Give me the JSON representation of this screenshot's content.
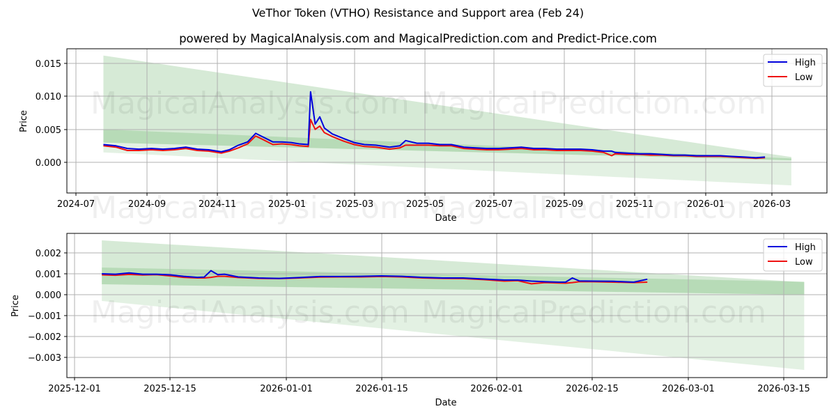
{
  "header": {
    "title": "VeThor Token (VTHO) Resistance and Support area (Feb 24)",
    "subtitle": "powered by MagicalAnalysis.com and MagicalPrediction.com and Predict-Price.com"
  },
  "watermarks": [
    "MagicalAnalysis.com",
    "MagicalPrediction.com"
  ],
  "colors": {
    "high": "#0000dd",
    "low": "#ee1111",
    "band": "#7fbf7f",
    "grid": "#b0b0b0"
  },
  "legend": {
    "high_label": "High",
    "low_label": "Low"
  },
  "chart_data": [
    {
      "type": "line",
      "title": "VeThor Token (VTHO) Resistance and Support area (Feb 24) - full history",
      "xlabel": "Date",
      "ylabel": "Price",
      "ylim": [
        -0.0047,
        0.0169
      ],
      "xticks": [
        "2024-07",
        "2024-09",
        "2024-11",
        "2025-01",
        "2025-03",
        "2025-05",
        "2025-07",
        "2025-09",
        "2025-11",
        "2026-01",
        "2026-03"
      ],
      "yticks": [
        "0.000",
        "0.005",
        "0.010",
        "0.015"
      ],
      "grid": true,
      "legend_position": "upper right",
      "x": [
        "2024-07-25",
        "2024-08-05",
        "2024-08-15",
        "2024-08-25",
        "2024-09-05",
        "2024-09-15",
        "2024-09-25",
        "2024-10-05",
        "2024-10-15",
        "2024-10-25",
        "2024-11-05",
        "2024-11-12",
        "2024-11-20",
        "2024-11-28",
        "2024-12-05",
        "2024-12-12",
        "2024-12-20",
        "2024-12-28",
        "2025-01-05",
        "2025-01-12",
        "2025-01-20",
        "2025-01-22",
        "2025-01-26",
        "2025-01-30",
        "2025-02-03",
        "2025-02-10",
        "2025-02-20",
        "2025-03-01",
        "2025-03-10",
        "2025-03-20",
        "2025-04-01",
        "2025-04-10",
        "2025-04-15",
        "2025-04-25",
        "2025-05-05",
        "2025-05-15",
        "2025-05-25",
        "2025-06-05",
        "2025-06-15",
        "2025-06-25",
        "2025-07-05",
        "2025-07-15",
        "2025-07-25",
        "2025-08-05",
        "2025-08-15",
        "2025-08-25",
        "2025-09-05",
        "2025-09-15",
        "2025-09-25",
        "2025-10-05",
        "2025-10-12",
        "2025-10-15",
        "2025-10-25",
        "2025-11-05",
        "2025-11-15",
        "2025-11-25",
        "2025-12-05",
        "2025-12-15",
        "2025-12-25",
        "2026-01-05",
        "2026-01-15",
        "2026-01-25",
        "2026-02-05",
        "2026-02-15",
        "2026-02-23"
      ],
      "series": [
        {
          "name": "High",
          "values": [
            0.0027,
            0.0025,
            0.0021,
            0.002,
            0.0021,
            0.002,
            0.0021,
            0.0023,
            0.002,
            0.0019,
            0.0016,
            0.0019,
            0.0026,
            0.0031,
            0.0044,
            0.0038,
            0.0031,
            0.0031,
            0.003,
            0.0028,
            0.0027,
            0.0107,
            0.0058,
            0.0069,
            0.0052,
            0.0043,
            0.0036,
            0.003,
            0.0027,
            0.0026,
            0.0023,
            0.0025,
            0.0033,
            0.0029,
            0.0029,
            0.0027,
            0.0027,
            0.0023,
            0.0022,
            0.0021,
            0.0021,
            0.0022,
            0.0023,
            0.0021,
            0.0021,
            0.002,
            0.002,
            0.002,
            0.0019,
            0.0017,
            0.0017,
            0.0015,
            0.0014,
            0.0013,
            0.0013,
            0.0012,
            0.0011,
            0.0011,
            0.001,
            0.001,
            0.001,
            0.0009,
            0.0008,
            0.0007,
            0.0008
          ]
        },
        {
          "name": "Low",
          "values": [
            0.0025,
            0.0023,
            0.0018,
            0.0018,
            0.0019,
            0.0018,
            0.0019,
            0.0021,
            0.0018,
            0.0017,
            0.0014,
            0.0017,
            0.0022,
            0.0028,
            0.004,
            0.0034,
            0.0027,
            0.0028,
            0.0027,
            0.0025,
            0.0024,
            0.0065,
            0.005,
            0.0055,
            0.0045,
            0.0039,
            0.0032,
            0.0027,
            0.0024,
            0.0023,
            0.002,
            0.0022,
            0.0026,
            0.0026,
            0.0026,
            0.0025,
            0.0025,
            0.0021,
            0.002,
            0.0019,
            0.0019,
            0.002,
            0.0021,
            0.0019,
            0.0019,
            0.0018,
            0.0018,
            0.0018,
            0.0017,
            0.0015,
            0.001,
            0.0013,
            0.0012,
            0.0012,
            0.0011,
            0.0011,
            0.001,
            0.001,
            0.0009,
            0.0009,
            0.0009,
            0.0008,
            0.0007,
            0.0006,
            0.0007
          ]
        }
      ],
      "bands": [
        {
          "name": "outer-upper",
          "start": [
            "2024-07-25",
            0.0162
          ],
          "end": [
            "2026-03-18",
            0.0008
          ]
        },
        {
          "name": "outer-lower",
          "start": [
            "2024-07-25",
            0.0015
          ],
          "end": [
            "2026-03-18",
            -0.0035
          ]
        },
        {
          "name": "inner-upper",
          "start": [
            "2024-07-25",
            0.005
          ],
          "end": [
            "2026-03-18",
            0.0006
          ]
        },
        {
          "name": "inner-lower",
          "start": [
            "2024-07-25",
            0.003
          ],
          "end": [
            "2026-03-18",
            0.0003
          ]
        }
      ]
    },
    {
      "type": "line",
      "title": "VeThor Token (VTHO) - recent zoom",
      "xlabel": "Date",
      "ylabel": "Price",
      "ylim": [
        -0.0039,
        0.0029
      ],
      "xticks": [
        "2025-12-01",
        "2025-12-15",
        "2026-01-01",
        "2026-01-15",
        "2026-02-01",
        "2026-02-15",
        "2026-03-01",
        "2026-03-15"
      ],
      "yticks": [
        "-0.003",
        "-0.002",
        "-0.001",
        "0.000",
        "0.001",
        "0.002"
      ],
      "grid": true,
      "legend_position": "upper right",
      "x": [
        "2025-12-05",
        "2025-12-07",
        "2025-12-09",
        "2025-12-11",
        "2025-12-13",
        "2025-12-15",
        "2025-12-17",
        "2025-12-19",
        "2025-12-20",
        "2025-12-21",
        "2025-12-22",
        "2025-12-23",
        "2025-12-25",
        "2025-12-28",
        "2025-12-31",
        "2026-01-03",
        "2026-01-06",
        "2026-01-09",
        "2026-01-12",
        "2026-01-15",
        "2026-01-18",
        "2026-01-21",
        "2026-01-24",
        "2026-01-27",
        "2026-01-30",
        "2026-02-02",
        "2026-02-04",
        "2026-02-06",
        "2026-02-08",
        "2026-02-10",
        "2026-02-11",
        "2026-02-12",
        "2026-02-13",
        "2026-02-15",
        "2026-02-18",
        "2026-02-21",
        "2026-02-23"
      ],
      "series": [
        {
          "name": "High",
          "values": [
            0.001,
            0.00098,
            0.00104,
            0.00098,
            0.00098,
            0.00095,
            0.00088,
            0.00083,
            0.00084,
            0.00115,
            0.00096,
            0.00098,
            0.00085,
            0.0008,
            0.00078,
            0.00082,
            0.00087,
            0.00087,
            0.00088,
            0.0009,
            0.00088,
            0.00083,
            0.0008,
            0.0008,
            0.00075,
            0.0007,
            0.0007,
            0.00065,
            0.00062,
            0.0006,
            0.0006,
            0.0008,
            0.00066,
            0.00065,
            0.00064,
            0.0006,
            0.00074
          ]
        },
        {
          "name": "Low",
          "values": [
            0.00095,
            0.00093,
            0.00097,
            0.00094,
            0.00096,
            0.0009,
            0.00083,
            0.0008,
            0.0008,
            0.00083,
            0.00088,
            0.00088,
            0.00082,
            0.00078,
            0.00077,
            0.0008,
            0.00084,
            0.00085,
            0.00085,
            0.00087,
            0.00085,
            0.0008,
            0.00078,
            0.00077,
            0.00072,
            0.00065,
            0.00067,
            0.00052,
            0.00058,
            0.00056,
            0.00055,
            0.00058,
            0.00062,
            0.00062,
            0.0006,
            0.00058,
            0.0006
          ]
        }
      ],
      "bands": [
        {
          "name": "outer-upper",
          "start": [
            "2025-12-05",
            0.0026
          ],
          "end": [
            "2026-03-18",
            0.0006
          ]
        },
        {
          "name": "outer-lower",
          "start": [
            "2025-12-05",
            -0.0003
          ],
          "end": [
            "2026-03-18",
            -0.0036
          ]
        },
        {
          "name": "inner-upper",
          "start": [
            "2025-12-05",
            0.0013
          ],
          "end": [
            "2026-03-18",
            0.00062
          ]
        },
        {
          "name": "inner-lower",
          "start": [
            "2025-12-05",
            0.0005
          ],
          "end": [
            "2026-03-18",
            0.0
          ]
        }
      ]
    }
  ]
}
